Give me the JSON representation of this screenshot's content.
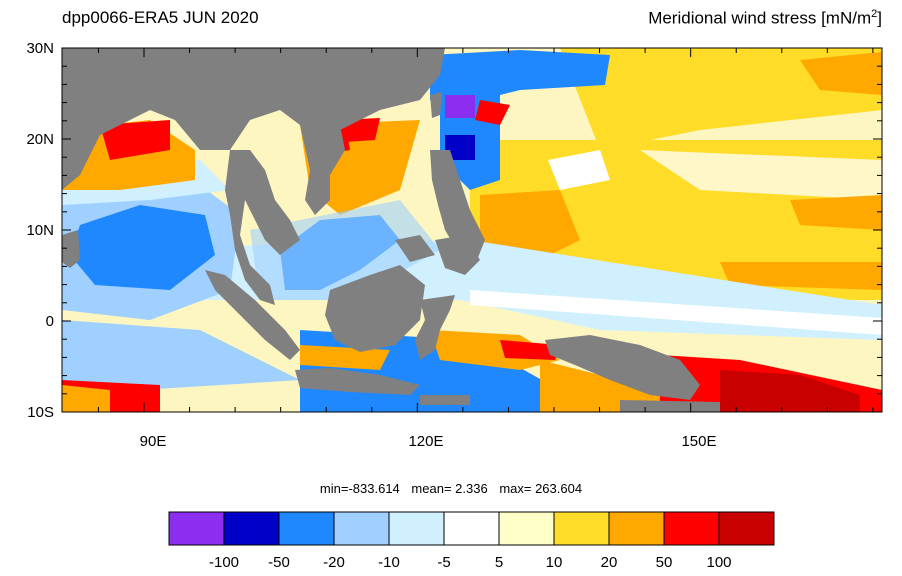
{
  "header": {
    "left_title": "dpp0066-ERA5  JUN 2020",
    "right_title_main": "Meridional wind stress [mN/m",
    "right_title_sup": "2",
    "right_title_end": "]"
  },
  "axes": {
    "lat_labels": [
      "30N",
      "20N",
      "10N",
      "0",
      "10S"
    ],
    "lon_labels": [
      "90E",
      "120E",
      "150E"
    ],
    "lat_range": [
      -10,
      30
    ],
    "lon_range": [
      81,
      171
    ]
  },
  "stats": {
    "min_label": "min=-833.614",
    "mean_label": "mean=   2.336",
    "max_label": "max= 263.604"
  },
  "colorbar": {
    "colors": [
      "#8c2ef0",
      "#0000c8",
      "#1f88ff",
      "#a0d0ff",
      "#d0f0ff",
      "#ffffff",
      "#ffffc8",
      "#ffdc28",
      "#ffa800",
      "#ff0000",
      "#c80000"
    ],
    "tick_labels": [
      "-100",
      "-50",
      "-20",
      "-10",
      "-5",
      "5",
      "10",
      "20",
      "50",
      "100"
    ]
  },
  "palette": {
    "land": "#808080",
    "field_base": "#fdf6c0"
  }
}
